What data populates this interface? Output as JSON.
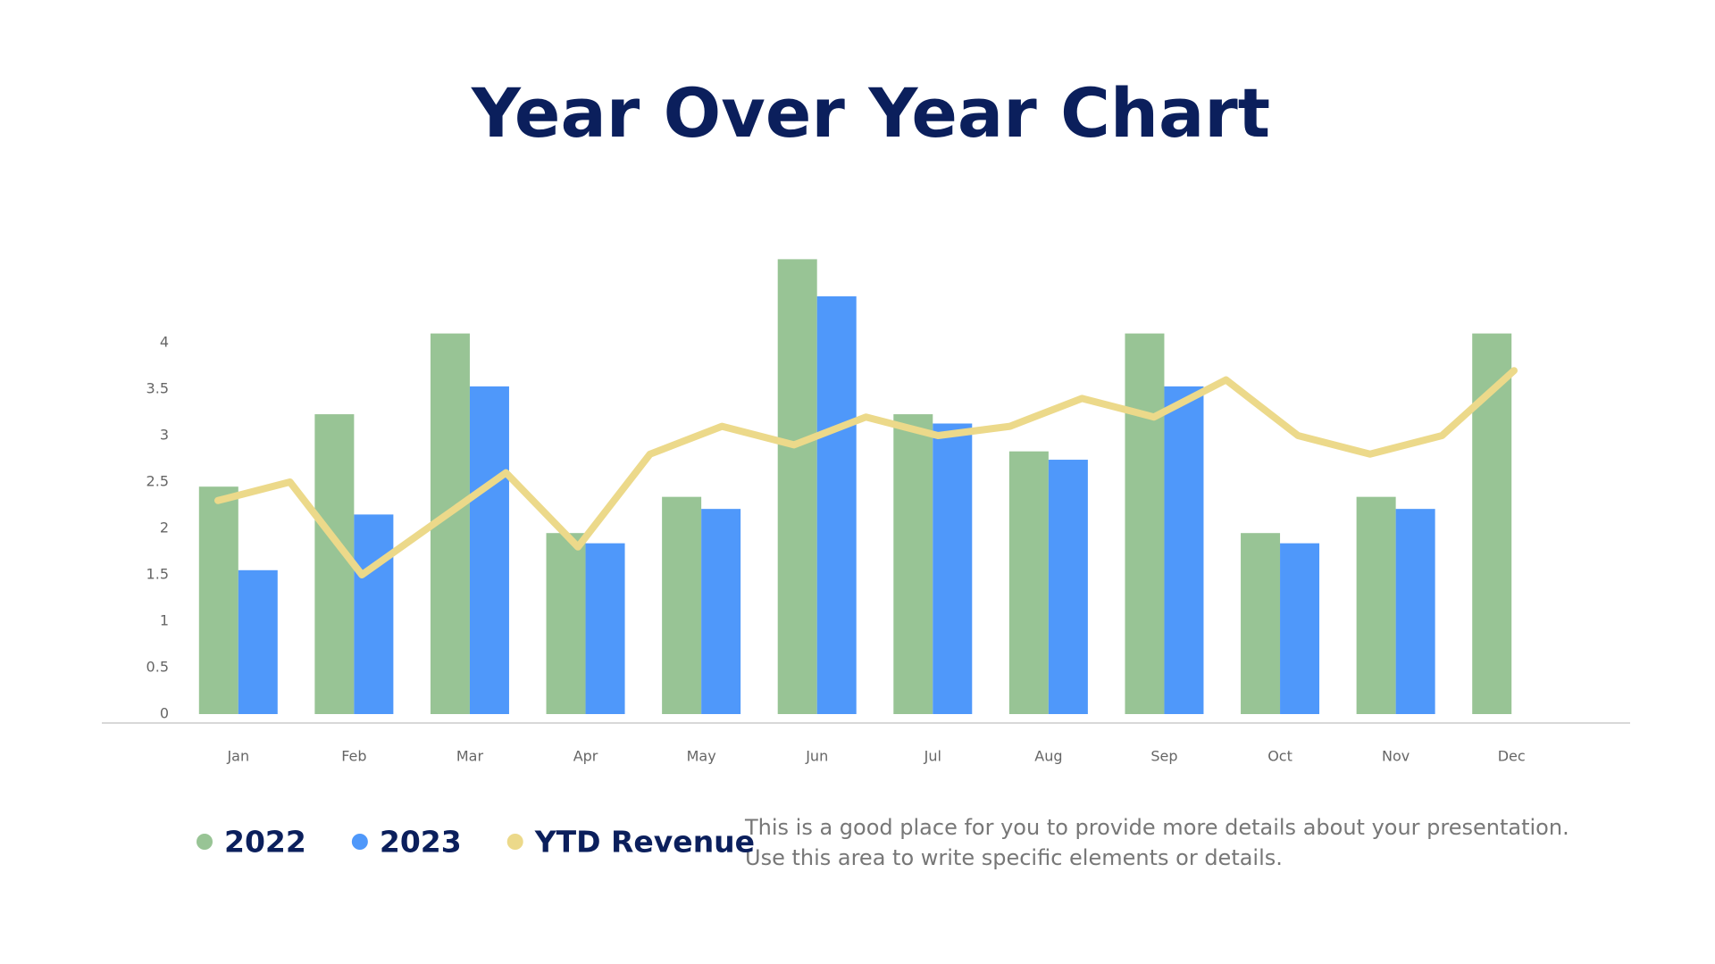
{
  "chart_data": [
    {
      "type": "bar",
      "title": "Year Over Year Chart",
      "categories": [
        "Jan",
        "Feb",
        "Mar",
        "Apr",
        "May",
        "Jun",
        "Jul",
        "Aug",
        "Sep",
        "Oct",
        "Nov",
        "Dec"
      ],
      "series": [
        {
          "name": "2022",
          "color": "#98c495",
          "values": [
            2.45,
            3.23,
            4.1,
            1.95,
            2.34,
            4.9,
            3.23,
            2.83,
            4.1,
            1.95,
            2.34,
            4.1
          ]
        },
        {
          "name": "2023",
          "color": "#4f98fa",
          "values": [
            1.55,
            2.15,
            3.53,
            1.84,
            2.21,
            4.5,
            3.13,
            2.74,
            3.53,
            1.84,
            2.21,
            null
          ]
        }
      ],
      "ylim": [
        0,
        5.5
      ],
      "yticks": [
        0,
        0.5,
        1,
        1.5,
        2,
        2.5,
        3,
        3.5,
        4
      ],
      "grid": false,
      "notes": [
        "This is a good place for you to provide more details about your presentation.",
        "Use this area to write specific elements or details."
      ]
    },
    {
      "type": "line",
      "categories": [
        null,
        null,
        null,
        null,
        null,
        null,
        null,
        null,
        null,
        null,
        null,
        null,
        null,
        null,
        null,
        null,
        null,
        null,
        null
      ],
      "series": [
        {
          "name": "YTD Revenue",
          "color": "#ecd98a",
          "values": [
            2.3,
            2.5,
            1.5,
            2.05,
            2.6,
            1.8,
            2.8,
            3.1,
            2.9,
            3.2,
            3.0,
            3.1,
            3.4,
            3.2,
            3.6,
            3.0,
            2.8,
            3.0,
            3.7
          ]
        }
      ],
      "ylim": [
        0,
        5.5
      ]
    }
  ]
}
